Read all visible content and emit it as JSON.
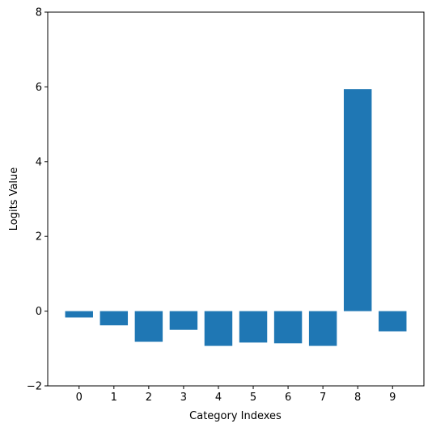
{
  "chart_data": {
    "type": "bar",
    "title": "",
    "xlabel": "Category Indexes",
    "ylabel": "Logits Value",
    "categories": [
      "0",
      "1",
      "2",
      "3",
      "4",
      "5",
      "6",
      "7",
      "8",
      "9"
    ],
    "values": [
      -0.17,
      -0.38,
      -0.82,
      -0.5,
      -0.93,
      -0.84,
      -0.86,
      -0.93,
      5.94,
      -0.54
    ],
    "ylim": [
      -2,
      8
    ],
    "yticks": [
      -2,
      0,
      2,
      4,
      6,
      8
    ],
    "bar_color": "#1f77b4",
    "grid": false,
    "legend": "none"
  }
}
